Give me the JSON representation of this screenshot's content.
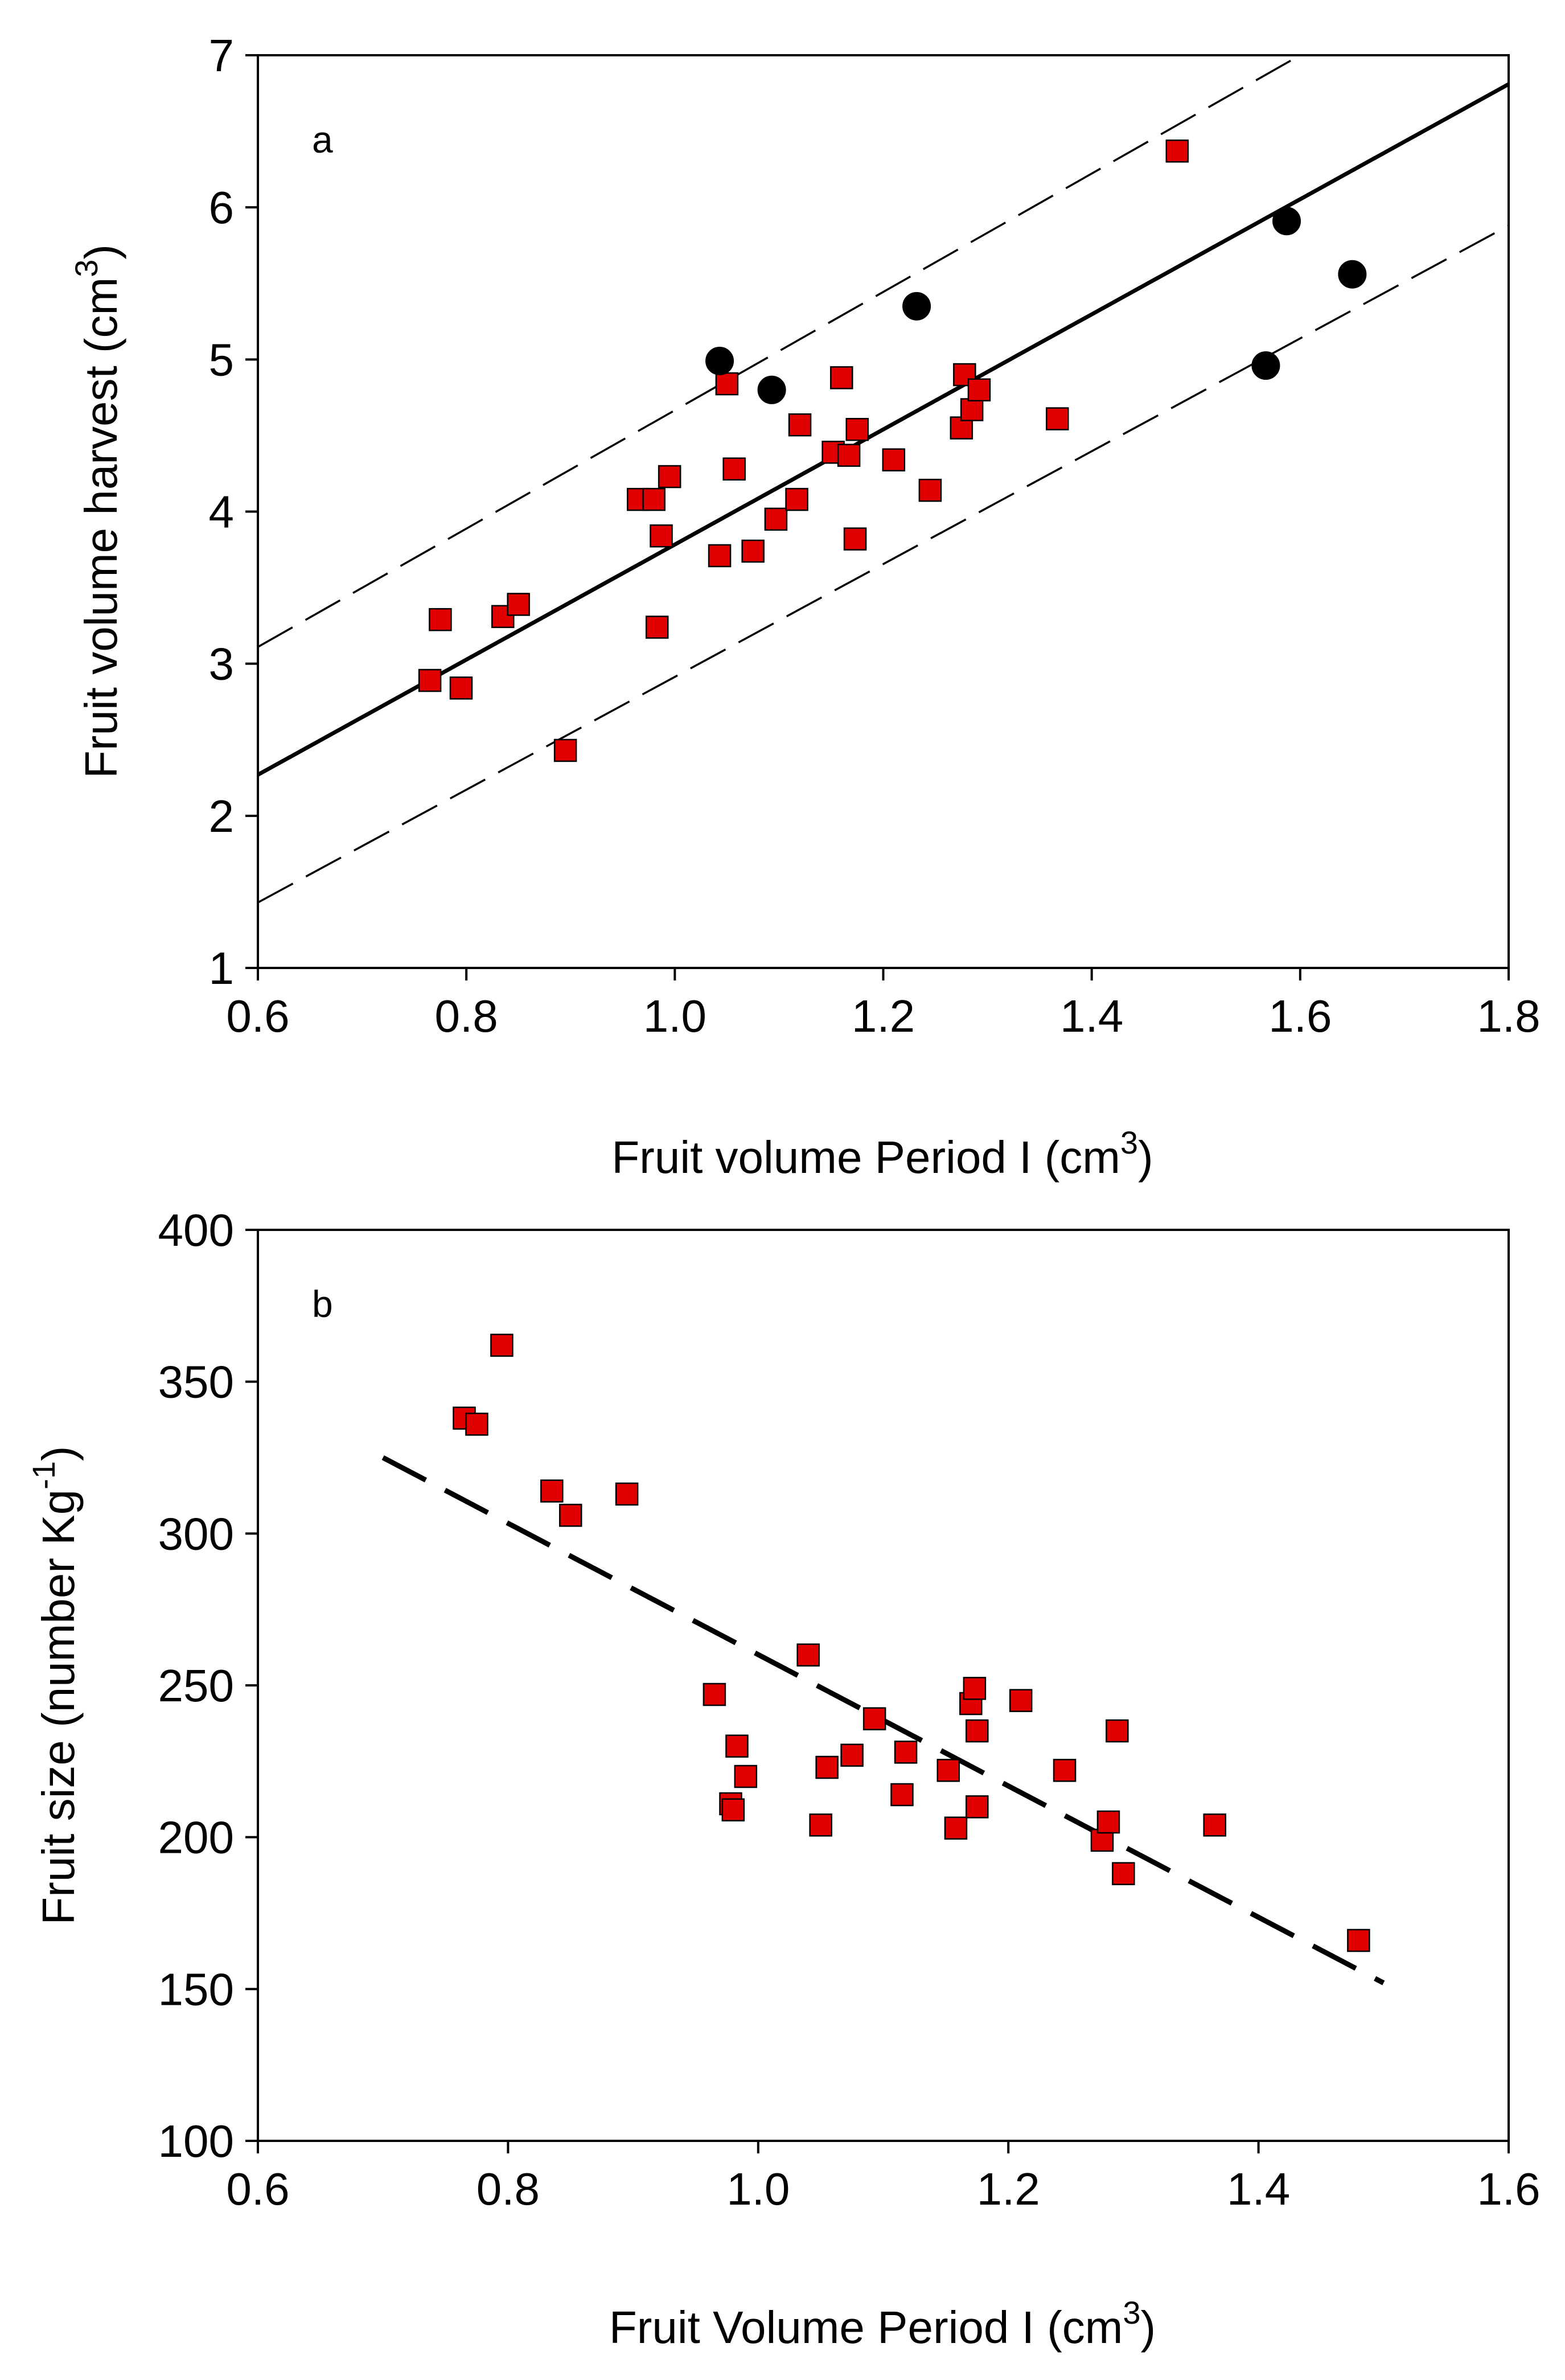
{
  "chart_data": [
    {
      "type": "scatter",
      "panel_label": "a",
      "xlabel": "Fruit volume Period I (cm",
      "xlabel_sup": "3",
      "xlabel_end": ")",
      "ylabel": "Fruit volume harvest (cm",
      "ylabel_sup": "3",
      "ylabel_end": ")",
      "xlim": [
        0.6,
        1.8
      ],
      "ylim": [
        1,
        7
      ],
      "xticks": [
        0.6,
        0.8,
        1.0,
        1.2,
        1.4,
        1.6,
        1.8
      ],
      "xtick_labels": [
        "0.6",
        "0.8",
        "1.0",
        "1.2",
        "1.4",
        "1.6",
        "1.8"
      ],
      "yticks": [
        1,
        2,
        3,
        4,
        5,
        6,
        7
      ],
      "ytick_labels": [
        "1",
        "2",
        "3",
        "4",
        "5",
        "6",
        "7"
      ],
      "series": [
        {
          "name": "red squares",
          "marker": "square",
          "color": "#e00000",
          "points": [
            [
              0.765,
              2.89
            ],
            [
              0.775,
              3.29
            ],
            [
              0.795,
              2.84
            ],
            [
              0.835,
              3.31
            ],
            [
              0.85,
              3.39
            ],
            [
              0.895,
              2.43
            ],
            [
              0.965,
              4.08
            ],
            [
              0.98,
              4.08
            ],
            [
              0.983,
              3.24
            ],
            [
              0.987,
              3.84
            ],
            [
              0.995,
              4.23
            ],
            [
              1.043,
              3.71
            ],
            [
              1.05,
              4.84
            ],
            [
              1.057,
              4.28
            ],
            [
              1.075,
              3.74
            ],
            [
              1.097,
              3.95
            ],
            [
              1.117,
              4.08
            ],
            [
              1.12,
              4.57
            ],
            [
              1.152,
              4.39
            ],
            [
              1.16,
              4.88
            ],
            [
              1.167,
              4.37
            ],
            [
              1.173,
              3.82
            ],
            [
              1.175,
              4.54
            ],
            [
              1.21,
              4.34
            ],
            [
              1.245,
              4.14
            ],
            [
              1.275,
              4.55
            ],
            [
              1.278,
              4.9
            ],
            [
              1.285,
              4.67
            ],
            [
              1.292,
              4.8
            ],
            [
              1.367,
              4.61
            ],
            [
              1.482,
              6.37
            ]
          ]
        },
        {
          "name": "black circles",
          "marker": "circle",
          "color": "#000000",
          "points": [
            [
              1.043,
              4.99
            ],
            [
              1.093,
              4.8
            ],
            [
              1.232,
              5.35
            ],
            [
              1.567,
              4.96
            ],
            [
              1.587,
              5.91
            ],
            [
              1.65,
              5.56
            ]
          ]
        }
      ],
      "lines": [
        {
          "name": "regression",
          "style": "solid",
          "x": [
            0.6,
            1.8
          ],
          "y": [
            2.27,
            6.81
          ]
        },
        {
          "name": "upper bound",
          "style": "dashed",
          "x": [
            0.6,
            1.6
          ],
          "y": [
            3.11,
            7.0
          ]
        },
        {
          "name": "lower bound",
          "style": "dashed",
          "x": [
            0.6,
            1.8
          ],
          "y": [
            1.43,
            5.88
          ]
        }
      ]
    },
    {
      "type": "scatter",
      "panel_label": "b",
      "xlabel": "Fruit Volume Period I (cm",
      "xlabel_sup": "3",
      "xlabel_end": ")",
      "ylabel": "Fruit size (number Kg",
      "ylabel_sup": "-1",
      "ylabel_end": ")",
      "xlim": [
        0.6,
        1.6
      ],
      "ylim": [
        100,
        400
      ],
      "xticks": [
        0.6,
        0.8,
        1.0,
        1.2,
        1.4,
        1.6
      ],
      "xtick_labels": [
        "0.6",
        "0.8",
        "1.0",
        "1.2",
        "1.4",
        "1.6"
      ],
      "yticks": [
        100,
        150,
        200,
        250,
        300,
        350,
        400
      ],
      "ytick_labels": [
        "100",
        "150",
        "200",
        "250",
        "300",
        "350",
        "400"
      ],
      "series": [
        {
          "name": "red squares",
          "marker": "square",
          "color": "#e00000",
          "points": [
            [
              0.765,
              338
            ],
            [
              0.775,
              336
            ],
            [
              0.795,
              362
            ],
            [
              0.835,
              314
            ],
            [
              0.85,
              306
            ],
            [
              0.895,
              313
            ],
            [
              0.965,
              247
            ],
            [
              0.978,
              211
            ],
            [
              0.98,
              209
            ],
            [
              0.983,
              230
            ],
            [
              0.99,
              220
            ],
            [
              1.04,
              260
            ],
            [
              1.05,
              204
            ],
            [
              1.055,
              223
            ],
            [
              1.075,
              227
            ],
            [
              1.093,
              239
            ],
            [
              1.115,
              214
            ],
            [
              1.118,
              228
            ],
            [
              1.152,
              222
            ],
            [
              1.158,
              203
            ],
            [
              1.17,
              244
            ],
            [
              1.173,
              249
            ],
            [
              1.175,
              235
            ],
            [
              1.175,
              210
            ],
            [
              1.21,
              245
            ],
            [
              1.245,
              222
            ],
            [
              1.275,
              199
            ],
            [
              1.28,
              205
            ],
            [
              1.287,
              235
            ],
            [
              1.292,
              188
            ],
            [
              1.365,
              204
            ],
            [
              1.48,
              166
            ]
          ]
        }
      ],
      "lines": [
        {
          "name": "regression",
          "style": "long-dashed",
          "x": [
            0.7,
            1.5
          ],
          "y": [
            325,
            152
          ]
        }
      ]
    }
  ]
}
